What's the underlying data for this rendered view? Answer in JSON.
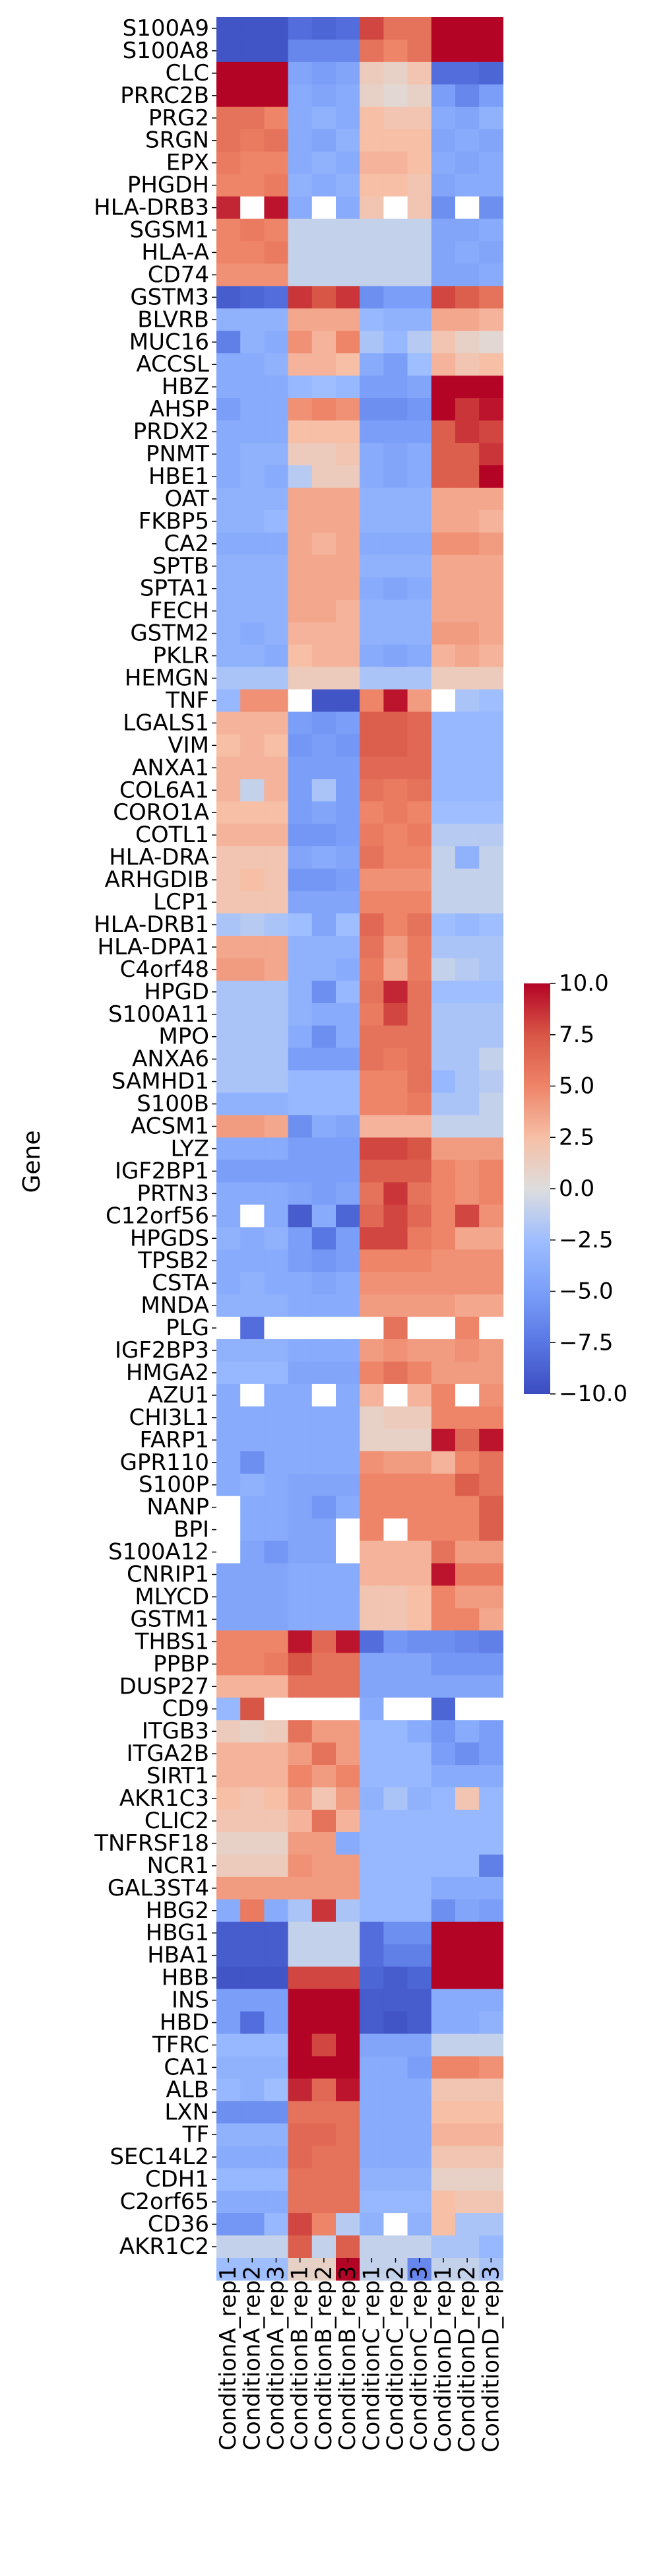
{
  "chart_data": {
    "type": "heatmap",
    "title": "",
    "xlabel": "",
    "ylabel": "Gene",
    "colormap": "coolwarm",
    "color_min_hex": "#3b4cc0",
    "color_mid_hex": "#dddddd",
    "color_max_hex": "#b40426",
    "vmin": -10,
    "vmax": 10,
    "colorbar_ticks": [
      10,
      7.5,
      5,
      2.5,
      0,
      -2.5,
      -5,
      -7.5,
      -10
    ],
    "colorbar_tick_labels": [
      "10.0",
      "7.5",
      "5.0",
      "2.5",
      "0.0",
      "−2.5",
      "−5.0",
      "−7.5",
      "−10.0"
    ],
    "columns": [
      "ConditionA_rep1",
      "ConditionA_rep2",
      "ConditionA_rep3",
      "ConditionB_rep1",
      "ConditionB_rep2",
      "ConditionB_rep3",
      "ConditionC_rep1",
      "ConditionC_rep2",
      "ConditionC_rep3",
      "ConditionD_rep1",
      "ConditionD_rep2",
      "ConditionD_rep3"
    ],
    "rows": [
      "S100A9",
      "S100A8",
      "CLC",
      "PRRC2B",
      "PRG2",
      "SRGN",
      "EPX",
      "PHGDH",
      "HLA-DRB3",
      "SGSM1",
      "HLA-A",
      "CD74",
      "GSTM3",
      "BLVRB",
      "MUC16",
      "ACCSL",
      "HBZ",
      "AHSP",
      "PRDX2",
      "PNMT",
      "HBE1",
      "OAT",
      "FKBP5",
      "CA2",
      "SPTB",
      "SPTA1",
      "FECH",
      "GSTM2",
      "PKLR",
      "HEMGN",
      "TNF",
      "LGALS1",
      "VIM",
      "ANXA1",
      "COL6A1",
      "CORO1A",
      "COTL1",
      "HLA-DRA",
      "ARHGDIB",
      "LCP1",
      "HLA-DRB1",
      "HLA-DPA1",
      "C4orf48",
      "HPGD",
      "S100A11",
      "MPO",
      "ANXA6",
      "SAMHD1",
      "S100B",
      "ACSM1",
      "LYZ",
      "IGF2BP1",
      "PRTN3",
      "C12orf56",
      "HPGDS",
      "TPSB2",
      "CSTA",
      "MNDA",
      "PLG",
      "IGF2BP3",
      "HMGA2",
      "AZU1",
      "CHI3L1",
      "FARP1",
      "GPR110",
      "S100P",
      "NANP",
      "BPI",
      "S100A12",
      "CNRIP1",
      "MLYCD",
      "GSTM1",
      "THBS1",
      "PPBP",
      "DUSP27",
      "CD9",
      "ITGB3",
      "ITGA2B",
      "SIRT1",
      "AKR1C3",
      "CLIC2",
      "TNFRSF18",
      "NCR1",
      "GAL3ST4",
      "HBG2",
      "HBG1",
      "HBA1",
      "HBB",
      "INS",
      "HBD",
      "TFRC",
      "CA1",
      "ALB",
      "LXN",
      "TF",
      "SEC14L2",
      "CDH1",
      "C2orf65",
      "CD36",
      "AKR1C2"
    ],
    "values": [
      [
        -9.5,
        -9.5,
        -9.5,
        -8,
        -8.5,
        -8,
        8,
        6,
        6,
        10,
        10,
        10
      ],
      [
        -9.5,
        -9.5,
        -9.5,
        -6.5,
        -6.5,
        -6.5,
        6,
        5,
        6,
        10,
        10,
        10
      ],
      [
        10,
        10,
        10,
        -4.5,
        -5,
        -4.5,
        1.5,
        1,
        2,
        -8,
        -8,
        -8.5
      ],
      [
        10,
        10,
        10,
        -4,
        -4.5,
        -4,
        1,
        0.5,
        1,
        -5,
        -6.5,
        -5
      ],
      [
        6,
        6,
        5,
        -4,
        -3.5,
        -4,
        2.5,
        2,
        2,
        -4,
        -4.5,
        -3.5
      ],
      [
        6,
        5.5,
        6,
        -4,
        -4.5,
        -3.5,
        2.5,
        2.5,
        2.5,
        -4.5,
        -4,
        -4.5
      ],
      [
        5.5,
        5,
        5,
        -4,
        -3.5,
        -4,
        3,
        3,
        2.5,
        -4,
        -4.5,
        -4
      ],
      [
        5,
        5,
        5.5,
        -3.5,
        -4,
        -3.5,
        2.5,
        2.5,
        2,
        -4.5,
        -4,
        -4
      ],
      [
        9,
        null,
        9.5,
        -4,
        null,
        -4,
        2,
        null,
        2,
        -6,
        null,
        -6
      ],
      [
        5,
        5.5,
        5,
        -1,
        -1,
        -1,
        -1,
        -1,
        -1,
        -4.5,
        -4.5,
        -4
      ],
      [
        5,
        5,
        5.5,
        -1,
        -1,
        -1,
        -1,
        -1,
        -1,
        -4.5,
        -4,
        -4.5
      ],
      [
        4.5,
        4.5,
        4.5,
        -1,
        -1,
        -1,
        -1,
        -1,
        -1,
        -4.5,
        -4.5,
        -4
      ],
      [
        -9,
        -8.5,
        -8,
        8.5,
        7.5,
        8.5,
        -6,
        -5,
        -5,
        8,
        7,
        6
      ],
      [
        -3.5,
        -3.5,
        -3.5,
        3.5,
        3.5,
        3.5,
        -3,
        -3.5,
        -3.5,
        3.5,
        3.5,
        3
      ],
      [
        -7,
        -3.5,
        -4,
        4.5,
        3,
        5,
        -2,
        -3,
        -1.5,
        2,
        1,
        0.5
      ],
      [
        -4,
        -4,
        -3.5,
        3,
        3,
        2.5,
        -4,
        -5,
        -2.5,
        3,
        2,
        2.5
      ],
      [
        -4,
        -4,
        -4,
        -3,
        -2.5,
        -3,
        -5,
        -5,
        -4.5,
        10,
        10,
        10
      ],
      [
        -5,
        -4,
        -4,
        4.5,
        5,
        4.5,
        -6,
        -6,
        -5.5,
        10,
        8.5,
        9.5
      ],
      [
        -4,
        -4,
        -4,
        2.5,
        2.5,
        2.5,
        -5,
        -5,
        -5,
        7,
        8.5,
        8
      ],
      [
        -4,
        -3.5,
        -3.5,
        1.5,
        1.5,
        2,
        -4,
        -4.5,
        -4,
        7,
        7,
        8.5
      ],
      [
        -4,
        -3.5,
        -4,
        -1.5,
        1.5,
        1.5,
        -4,
        -4.5,
        -4,
        7,
        7,
        10
      ],
      [
        -3.5,
        -3.5,
        -3.5,
        3.5,
        3.5,
        3.5,
        -3.5,
        -3.5,
        -3.5,
        3.5,
        3.5,
        3.5
      ],
      [
        -3.5,
        -3.5,
        -3,
        3.5,
        3.5,
        3.5,
        -3.5,
        -3.5,
        -3.5,
        3.5,
        3.5,
        3
      ],
      [
        -4,
        -4,
        -4,
        3.5,
        3,
        3.5,
        -4,
        -4,
        -4,
        4.5,
        4.5,
        4
      ],
      [
        -3.5,
        -3.5,
        -3.5,
        3.5,
        3.5,
        3.5,
        -3.5,
        -3.5,
        -3.5,
        3.5,
        3.5,
        3.5
      ],
      [
        -3.5,
        -3.5,
        -3.5,
        3.5,
        3.5,
        3.5,
        -4,
        -4.5,
        -4,
        3.5,
        3.5,
        3.5
      ],
      [
        -3.5,
        -3.5,
        -3.5,
        3.5,
        3.5,
        3,
        -3.5,
        -3.5,
        -3.5,
        3.5,
        3.5,
        3.5
      ],
      [
        -3.5,
        -4,
        -3.5,
        3,
        3,
        3,
        -3.5,
        -3.5,
        -3.5,
        4,
        4,
        3.5
      ],
      [
        -3.5,
        -3.5,
        -4,
        2.5,
        3,
        3,
        -4,
        -4.5,
        -4,
        3,
        3.5,
        3
      ],
      [
        -2,
        -2,
        -2,
        1.5,
        1.5,
        1.5,
        -2,
        -2,
        -2,
        1.5,
        1.5,
        1.5
      ],
      [
        -3,
        4.5,
        4.5,
        null,
        -9.5,
        -9.5,
        5,
        9.5,
        4,
        null,
        -2,
        -2.5
      ],
      [
        3,
        3,
        3,
        -5,
        -5.5,
        -5,
        7,
        7,
        6.5,
        -3,
        -3,
        -3
      ],
      [
        2.5,
        3,
        2.5,
        -5.5,
        -5,
        -5.5,
        7,
        7,
        6.5,
        -3,
        -3,
        -3
      ],
      [
        3,
        3,
        3,
        -5,
        -5,
        -5,
        6.5,
        6.5,
        6.5,
        -3,
        -3,
        -3
      ],
      [
        3,
        -1,
        3,
        -5,
        -2,
        -5,
        6,
        5.5,
        6,
        -3,
        -3,
        -3
      ],
      [
        2.5,
        2.5,
        2.5,
        -5,
        -4.5,
        -5,
        5,
        5.5,
        5,
        -2.5,
        -2.5,
        -2.5
      ],
      [
        3,
        3,
        3,
        -5.5,
        -5.5,
        -5,
        5.5,
        5,
        5.5,
        -1.5,
        -1.5,
        -1.5
      ],
      [
        2,
        2,
        2,
        -4.5,
        -4,
        -4.5,
        6,
        5,
        5,
        -1,
        -3.5,
        -1
      ],
      [
        2,
        2.5,
        2,
        -5.5,
        -5.5,
        -5,
        4.5,
        4.5,
        4.5,
        -1,
        -1,
        -1
      ],
      [
        2,
        2,
        2,
        -4.5,
        -4.5,
        -4.5,
        5,
        5,
        5,
        -1,
        -1,
        -1
      ],
      [
        -2,
        -1.5,
        -2,
        -2.5,
        -4.5,
        -2.5,
        6.5,
        5,
        6,
        -2.5,
        -3,
        -2.5
      ],
      [
        3.5,
        3.5,
        3.5,
        -3.5,
        -3.5,
        -3.5,
        6,
        4,
        5.5,
        -2,
        -2,
        -2
      ],
      [
        4,
        4,
        3.5,
        -3.5,
        -3.5,
        -4,
        5.5,
        3.5,
        5.5,
        -1,
        -1.5,
        -2
      ],
      [
        -2,
        -2,
        -2,
        -3.5,
        -6,
        -3,
        6,
        9,
        6,
        -2.5,
        -2.5,
        -2.5
      ],
      [
        -2,
        -2,
        -2,
        -3.5,
        -4,
        -4,
        5.5,
        8,
        6,
        -2,
        -2,
        -2
      ],
      [
        -2,
        -2,
        -2,
        -4,
        -6,
        -4,
        6,
        6,
        6,
        -2,
        -2,
        -2
      ],
      [
        -2,
        -2,
        -2,
        -5,
        -5,
        -5,
        6,
        5.5,
        6,
        -2,
        -2,
        -1
      ],
      [
        -2,
        -2,
        -2,
        -3,
        -3,
        -3,
        5,
        5,
        6,
        -3,
        -2,
        -1.5
      ],
      [
        -3.5,
        -3.5,
        -3.5,
        -3,
        -3,
        -3,
        5,
        5,
        5.5,
        -2,
        -2,
        -1
      ],
      [
        4,
        4,
        3.5,
        -6,
        -4,
        -4.5,
        3,
        3,
        3,
        -1,
        -1,
        -1
      ],
      [
        -4,
        -4,
        -4,
        -5,
        -5,
        -5,
        8,
        8,
        7.5,
        4,
        4,
        4
      ],
      [
        -5,
        -5,
        -5,
        -5,
        -5,
        -5,
        7,
        7,
        7,
        5,
        4.5,
        5
      ],
      [
        -4,
        -4,
        -4,
        -4.5,
        -5,
        -4.5,
        6,
        8.5,
        6,
        5,
        4.5,
        5
      ],
      [
        -4,
        null,
        -4,
        -9,
        -4,
        -8.5,
        6.5,
        8,
        6.5,
        5,
        8,
        4.5
      ],
      [
        -3.5,
        -4,
        -3.5,
        -5,
        -7.5,
        -5,
        8,
        8,
        5.5,
        5,
        3.5,
        3.5
      ],
      [
        -4,
        -4,
        -4,
        -5,
        -5.5,
        -5,
        5,
        5,
        5,
        4.5,
        4.5,
        4.5
      ],
      [
        -4,
        -3.5,
        -4,
        -4,
        -4.5,
        -4,
        4.5,
        4.5,
        4.5,
        4.5,
        4.5,
        4.5
      ],
      [
        -3.5,
        -3.5,
        -3.5,
        -4,
        -4,
        -4,
        4,
        4,
        4,
        4,
        3.5,
        3.5
      ],
      [
        null,
        -8,
        null,
        null,
        null,
        null,
        null,
        6,
        null,
        null,
        5,
        null
      ],
      [
        -3.5,
        -3.5,
        -3.5,
        -4,
        -4,
        -4,
        4,
        4.5,
        4,
        4,
        4.5,
        4
      ],
      [
        -3,
        -3,
        -3,
        -4.5,
        -4.5,
        -4.5,
        5,
        6,
        5,
        4,
        4,
        4
      ],
      [
        -4,
        null,
        -4,
        -4,
        null,
        -4,
        3,
        null,
        3,
        5,
        null,
        4.5
      ],
      [
        -4,
        -4,
        -4,
        -4,
        -4,
        -4,
        1,
        1.5,
        1.5,
        5,
        5,
        5
      ],
      [
        -4,
        -4,
        -4,
        -4,
        -4,
        -4,
        1,
        1,
        1,
        9.5,
        6.5,
        9.5
      ],
      [
        -4,
        -6,
        -4,
        -4,
        -4,
        -4,
        4.5,
        4,
        4,
        3,
        5,
        6
      ],
      [
        -4,
        -3.5,
        -4,
        -4.5,
        -4.5,
        -4.5,
        5,
        5,
        5,
        5,
        7,
        6
      ],
      [
        null,
        -4,
        -4,
        -4.5,
        -5.5,
        -4,
        5,
        5,
        5,
        5,
        5,
        7
      ],
      [
        null,
        -4,
        -4,
        -4.5,
        -4.5,
        null,
        5,
        null,
        5,
        5,
        5,
        7
      ],
      [
        null,
        -4.5,
        -5.5,
        -4.5,
        -4.5,
        null,
        3,
        3,
        3,
        6,
        4,
        4
      ],
      [
        -4.5,
        -4.5,
        -4.5,
        -4,
        -4,
        -4,
        3,
        3,
        3,
        9.5,
        5.5,
        5.5
      ],
      [
        -4.5,
        -4.5,
        -4.5,
        -4,
        -4,
        -4,
        2,
        2,
        2.5,
        5,
        4,
        4
      ],
      [
        -4.5,
        -4.5,
        -4.5,
        -4,
        -4,
        -4,
        2,
        2,
        2.5,
        5,
        5,
        3.5
      ],
      [
        5,
        5,
        5,
        9.5,
        6.5,
        9.5,
        -8,
        -5.5,
        -6,
        -6,
        -6.5,
        -7
      ],
      [
        5,
        5,
        5.5,
        7.5,
        6,
        6,
        -4.5,
        -4.5,
        -4.5,
        -5.5,
        -5.5,
        -5.5
      ],
      [
        3,
        3,
        3,
        6,
        6,
        6,
        -4.5,
        -4.5,
        -4.5,
        -4.5,
        -4.5,
        -4.5
      ],
      [
        -3,
        7.5,
        null,
        null,
        null,
        null,
        -4,
        null,
        null,
        -8.5,
        null,
        null
      ],
      [
        1.5,
        1,
        1.5,
        6,
        4,
        4,
        -3,
        -3,
        -4,
        -5.5,
        -4,
        -5
      ],
      [
        3,
        3,
        3,
        4,
        6,
        4,
        -3,
        -3,
        -3,
        -5,
        -6,
        -5
      ],
      [
        3,
        3,
        3,
        5,
        4,
        5,
        -3,
        -3,
        -3,
        -4,
        -4,
        -4
      ],
      [
        2.5,
        2,
        2.5,
        4,
        2,
        4,
        -3.5,
        -2,
        -3.5,
        -3,
        2,
        -3
      ],
      [
        2,
        2,
        2,
        3,
        6,
        3,
        -3,
        -3,
        -3,
        -3,
        -3,
        -3
      ],
      [
        1,
        1,
        1,
        4,
        4,
        -4,
        -3,
        -3,
        -3,
        -3,
        -3,
        -3
      ],
      [
        1.5,
        1.5,
        1.5,
        4.5,
        4,
        4,
        -3,
        -3,
        -3,
        -3,
        -3,
        -7
      ],
      [
        4,
        4,
        4,
        4,
        4,
        4,
        -3,
        -3,
        -3,
        -4,
        -4,
        -4
      ],
      [
        -4,
        5.5,
        -4,
        -2,
        8.5,
        -2,
        -3,
        -3,
        -3,
        -6,
        -4.5,
        -5
      ],
      [
        -9,
        -9,
        -9,
        -1,
        -1,
        -1,
        -8,
        -6,
        -6,
        10,
        10,
        10
      ],
      [
        -9,
        -9,
        -9,
        -1,
        -1,
        -1,
        -8,
        -7,
        -7,
        10,
        10,
        10
      ],
      [
        -9.5,
        -9.5,
        -9.5,
        8,
        8,
        8,
        -8.5,
        -9,
        -8.5,
        10,
        10,
        10
      ],
      [
        -5,
        -5,
        -5,
        10,
        10,
        10,
        -9,
        -9,
        -9,
        -4,
        -4,
        -4
      ],
      [
        -5,
        -8,
        -5,
        10,
        10,
        10,
        -9,
        -9.5,
        -9,
        -4,
        -4,
        -3.5
      ],
      [
        -3,
        -3,
        -3,
        10,
        8,
        10,
        -4.5,
        -4.5,
        -4.5,
        -1,
        -1,
        -1
      ],
      [
        -3.5,
        -3.5,
        -3.5,
        10,
        10,
        10,
        -4,
        -4,
        -5,
        5,
        5,
        4.5
      ],
      [
        -3,
        -3.5,
        -2.5,
        9,
        6.5,
        9.5,
        -4,
        -4,
        -4,
        2,
        2,
        2
      ],
      [
        -6,
        -6,
        -6,
        6,
        6,
        6,
        -4,
        -4,
        -4,
        2.5,
        2.5,
        2.5
      ],
      [
        -3.5,
        -3.5,
        -3.5,
        6.5,
        6.5,
        6,
        -4,
        -4,
        -4,
        3,
        3,
        3
      ],
      [
        -4,
        -4,
        -4,
        6.5,
        6,
        6,
        -4,
        -4,
        -4,
        2,
        2,
        2
      ],
      [
        -3,
        -3,
        -3,
        6,
        6,
        6,
        -3.5,
        -3.5,
        -3.5,
        1,
        1,
        1
      ],
      [
        -4,
        -4,
        -4,
        6,
        6,
        6,
        -3,
        -3,
        -3,
        2.5,
        2,
        2
      ],
      [
        -5.5,
        -5.5,
        -3,
        8,
        5,
        -1.5,
        -3.5,
        null,
        -3.5,
        2.5,
        -2,
        -2
      ],
      [
        -1,
        -1,
        -1,
        7,
        -1,
        7,
        -1,
        -1,
        -1,
        -2,
        -2,
        -3
      ],
      [
        -2.5,
        -2.5,
        -2.5,
        1,
        1,
        10,
        -1,
        -1,
        -6.5,
        -1,
        -1,
        -2
      ]
    ]
  }
}
